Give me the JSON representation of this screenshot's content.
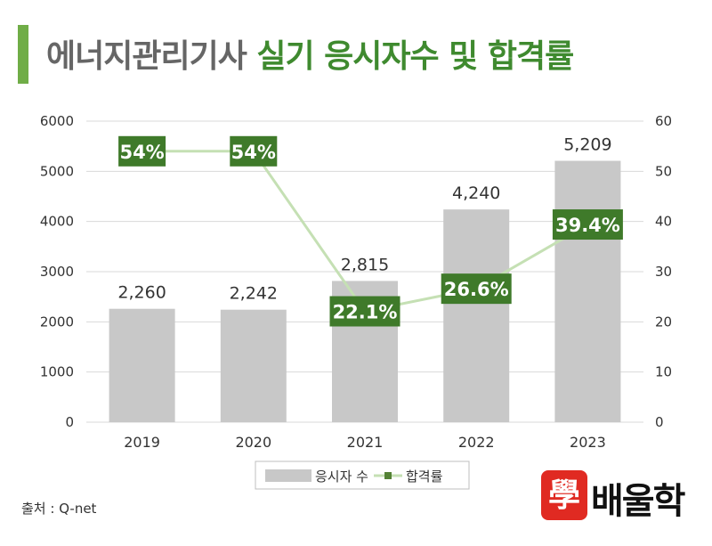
{
  "title": {
    "part1": "에너지관리기사",
    "part2": "실기 응시자수 및 합격률"
  },
  "source_label": "출처 : Q-net",
  "logo": {
    "seal": "學",
    "text": "배울학"
  },
  "colors": {
    "bar": "#c8c8c8",
    "line": "#c5e0b4",
    "marker": "#548235",
    "label_box": "#3f7a2a",
    "accent": "#70ad47"
  },
  "chart_data": {
    "type": "bar",
    "categories": [
      "2019",
      "2020",
      "2021",
      "2022",
      "2023"
    ],
    "series": [
      {
        "name": "응시자 수",
        "type": "bar",
        "axis": "left",
        "values": [
          2260,
          2242,
          2815,
          4240,
          5209
        ],
        "labels": [
          "2,260",
          "2,242",
          "2,815",
          "4,240",
          "5,209"
        ]
      },
      {
        "name": "합격률",
        "type": "line",
        "axis": "right",
        "values": [
          54,
          54,
          22.1,
          26.6,
          39.4
        ],
        "labels": [
          "54%",
          "54%",
          "22.1%",
          "26.6%",
          "39.4%"
        ]
      }
    ],
    "y_left": {
      "range": [
        0,
        6000
      ],
      "ticks": [
        "0",
        "1000",
        "2000",
        "3000",
        "4000",
        "5000",
        "6000"
      ]
    },
    "y_right": {
      "range": [
        0,
        60
      ],
      "ticks": [
        "0",
        "10",
        "20",
        "30",
        "40",
        "50",
        "60"
      ]
    },
    "grid": true,
    "legend_position": "bottom"
  }
}
